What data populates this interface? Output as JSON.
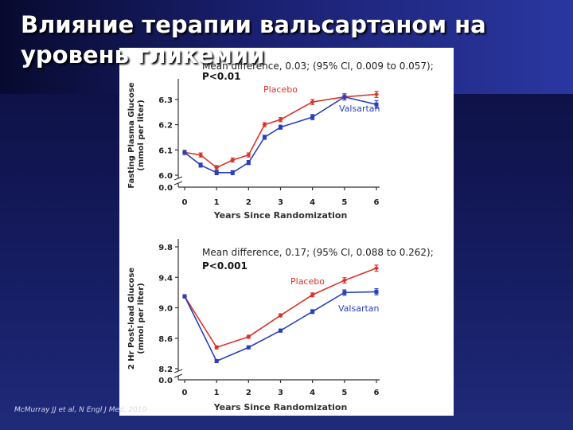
{
  "slide": {
    "title": "Влияние терапии вальсартаном на уровень гликемии",
    "citation": "McMurray JJ et al, N Engl J Med, 2010",
    "colors": {
      "placebo": "#d9342b",
      "valsartan": "#2a3fbd"
    }
  },
  "chart_data": [
    {
      "type": "line",
      "ylabel": [
        "Fasting Plasma Glucose",
        "(mmol per liter)"
      ],
      "xlabel": "Years Since Randomization",
      "annotation": "Mean difference, 0.03; (95% CI, 0.009 to 0.057);",
      "p_value": "P<0.01",
      "x": [
        0,
        0.5,
        1,
        1.5,
        2,
        2.5,
        3,
        4,
        5,
        6
      ],
      "x_ticks": [
        "0",
        "1",
        "2",
        "3",
        "4",
        "5",
        "6"
      ],
      "y_ticks": [
        "6.3",
        "6.2",
        "6.1",
        "6.0",
        "0.0"
      ],
      "y_tick_values": [
        6.3,
        6.2,
        6.1,
        6.0
      ],
      "axis_break": true,
      "ylim": [
        6.0,
        6.35
      ],
      "xlim": [
        0,
        6
      ],
      "series": [
        {
          "name": "Placebo",
          "values": [
            6.09,
            6.08,
            6.03,
            6.06,
            6.08,
            6.2,
            6.22,
            6.29,
            6.31,
            6.32
          ],
          "error": [
            0.008,
            0.008,
            0.008,
            0.008,
            0.008,
            0.008,
            0.008,
            0.01,
            0.012,
            0.012
          ]
        },
        {
          "name": "Valsartan",
          "values": [
            6.09,
            6.04,
            6.01,
            6.01,
            6.05,
            6.15,
            6.19,
            6.23,
            6.31,
            6.28
          ],
          "error": [
            0.008,
            0.008,
            0.008,
            0.008,
            0.008,
            0.008,
            0.008,
            0.01,
            0.012,
            0.015
          ]
        }
      ]
    },
    {
      "type": "line",
      "ylabel": [
        "2 Hr Post-load Glucose",
        "(mmol per liter)"
      ],
      "xlabel": "Years Since Randomization",
      "annotation": "Mean difference, 0.17; (95% CI, 0.088 to 0.262);",
      "p_value": "P<0.001",
      "x": [
        0,
        1,
        2,
        3,
        4,
        5,
        6
      ],
      "x_ticks": [
        "0",
        "1",
        "2",
        "3",
        "4",
        "5",
        "6"
      ],
      "y_ticks": [
        "9.8",
        "9.4",
        "9.0",
        "8.6",
        "8.2",
        "0.0"
      ],
      "y_tick_values": [
        9.8,
        9.4,
        9.0,
        8.6,
        8.2
      ],
      "axis_break": true,
      "ylim": [
        8.2,
        9.8
      ],
      "xlim": [
        0,
        6
      ],
      "series": [
        {
          "name": "Placebo",
          "values": [
            9.15,
            8.48,
            8.62,
            8.9,
            9.17,
            9.36,
            9.52
          ],
          "error": [
            0.02,
            0.02,
            0.02,
            0.02,
            0.025,
            0.035,
            0.04
          ]
        },
        {
          "name": "Valsartan",
          "values": [
            9.15,
            8.3,
            8.48,
            8.7,
            8.95,
            9.2,
            9.21
          ],
          "error": [
            0.02,
            0.02,
            0.02,
            0.02,
            0.025,
            0.035,
            0.04
          ]
        }
      ]
    }
  ]
}
